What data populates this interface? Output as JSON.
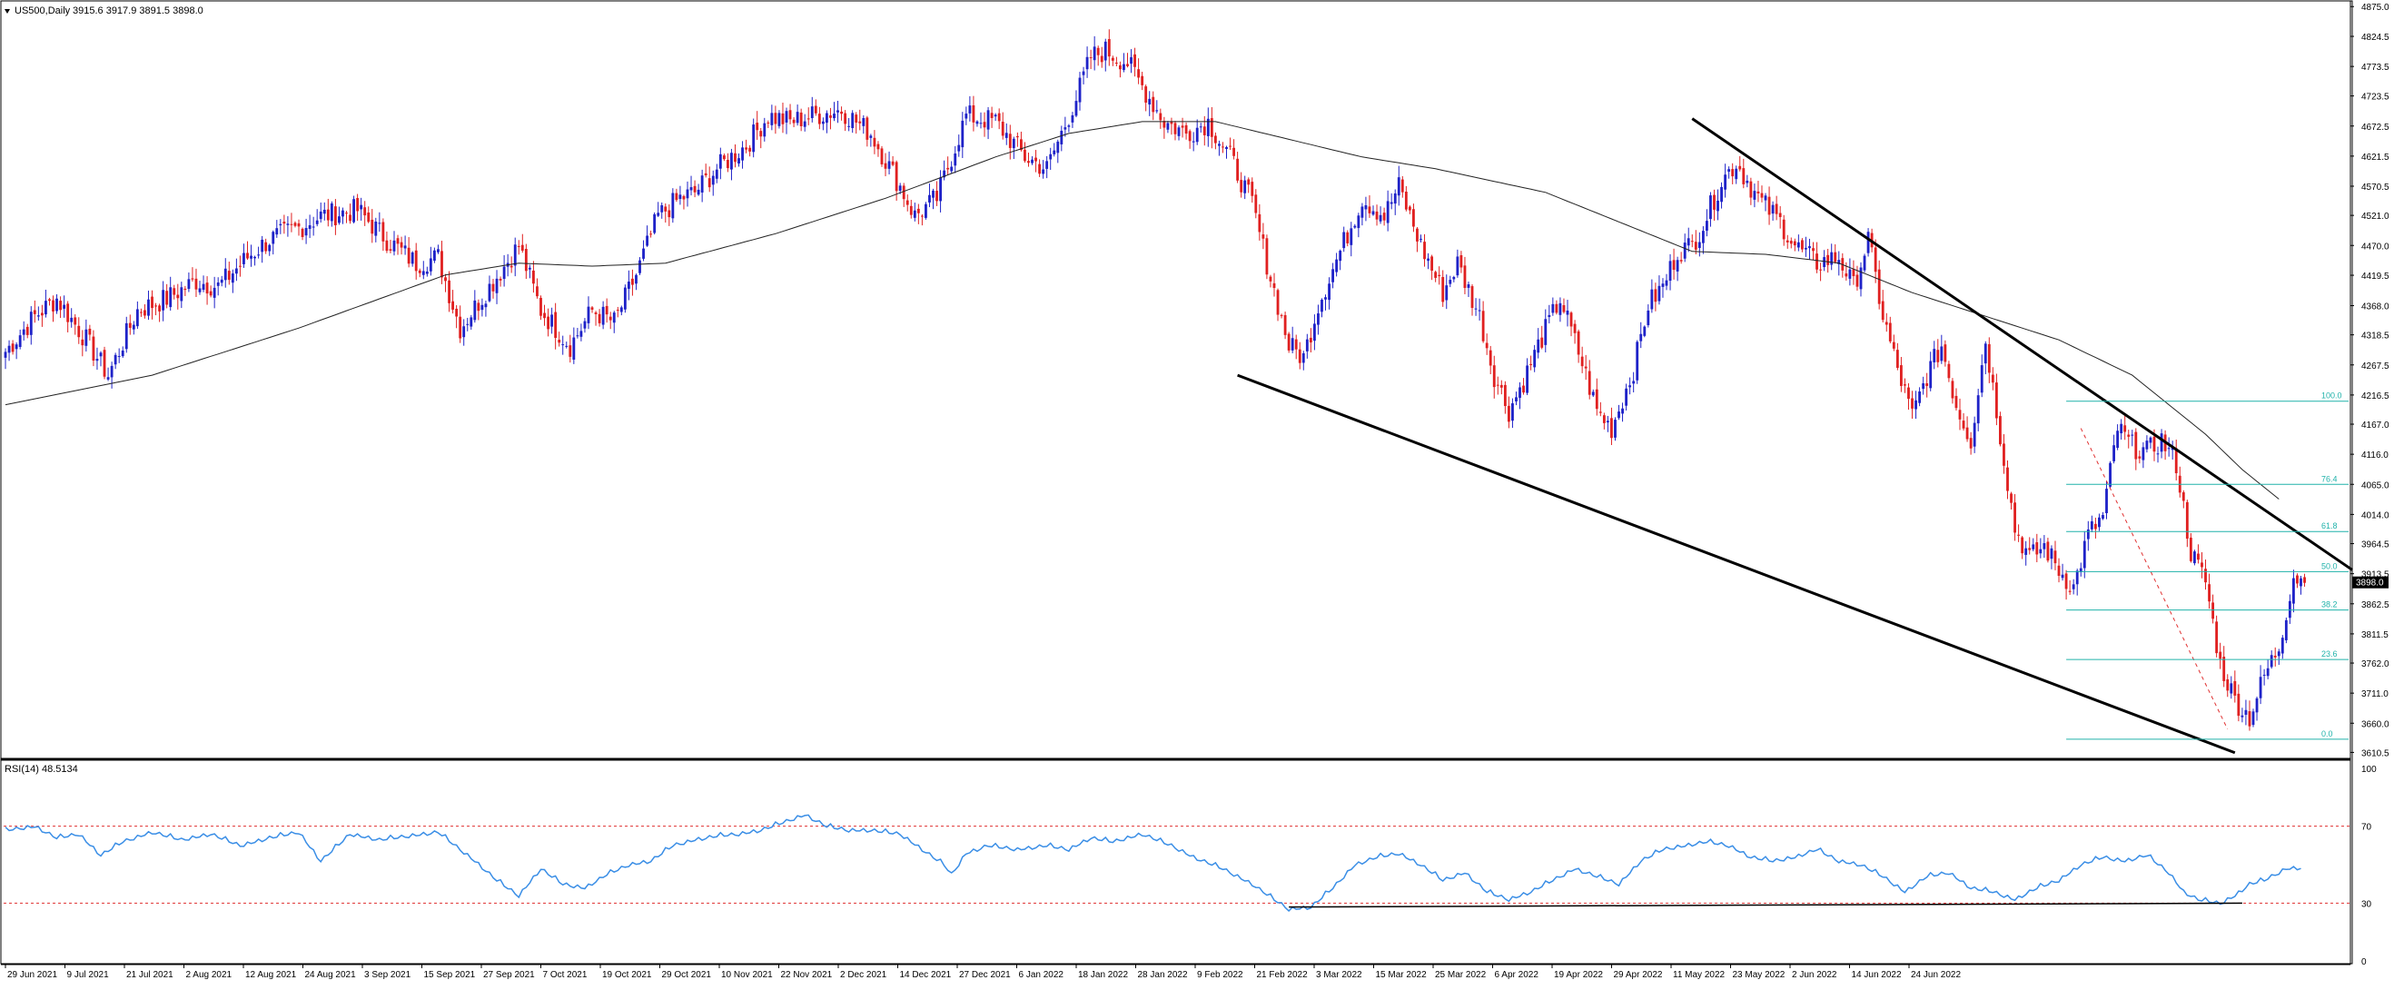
{
  "chart_data": {
    "type": "candlestick",
    "header": {
      "symbol": "US500,Daily",
      "ohlc": "3915.6 3917.9 3891.5 3898.0"
    },
    "price_axis": {
      "ticks": [
        "4875.0",
        "4824.5",
        "4773.5",
        "4723.5",
        "4672.5",
        "4621.5",
        "4570.5",
        "4521.0",
        "4470.0",
        "4419.5",
        "4368.0",
        "4318.5",
        "4267.5",
        "4216.5",
        "4167.0",
        "4116.0",
        "4065.0",
        "4014.0",
        "3964.5",
        "3913.5",
        "3862.5",
        "3811.5",
        "3762.0",
        "3711.0",
        "3660.0",
        "3610.5"
      ],
      "current_price": "3898.0",
      "range": [
        3605,
        4880
      ]
    },
    "date_axis": {
      "labels": [
        "29 Jun 2021",
        "9 Jul 2021",
        "21 Jul 2021",
        "2 Aug 2021",
        "12 Aug 2021",
        "24 Aug 2021",
        "3 Sep 2021",
        "15 Sep 2021",
        "27 Sep 2021",
        "7 Oct 2021",
        "19 Oct 2021",
        "29 Oct 2021",
        "10 Nov 2021",
        "22 Nov 2021",
        "2 Dec 2021",
        "14 Dec 2021",
        "27 Dec 2021",
        "6 Jan 2022",
        "18 Jan 2022",
        "28 Jan 2022",
        "9 Feb 2022",
        "21 Feb 2022",
        "3 Mar 2022",
        "15 Mar 2022",
        "25 Mar 2022",
        "6 Apr 2022",
        "19 Apr 2022",
        "29 Apr 2022",
        "11 May 2022",
        "23 May 2022",
        "2 Jun 2022",
        "14 Jun 2022",
        "24 Jun 2022"
      ]
    },
    "close_path": [
      [
        0,
        4290
      ],
      [
        8,
        4350
      ],
      [
        14,
        4380
      ],
      [
        22,
        4310
      ],
      [
        28,
        4250
      ],
      [
        36,
        4360
      ],
      [
        44,
        4380
      ],
      [
        52,
        4410
      ],
      [
        58,
        4400
      ],
      [
        66,
        4450
      ],
      [
        72,
        4480
      ],
      [
        80,
        4500
      ],
      [
        86,
        4520
      ],
      [
        96,
        4530
      ],
      [
        104,
        4480
      ],
      [
        112,
        4440
      ],
      [
        118,
        4450
      ],
      [
        124,
        4330
      ],
      [
        132,
        4400
      ],
      [
        140,
        4470
      ],
      [
        146,
        4360
      ],
      [
        154,
        4300
      ],
      [
        160,
        4360
      ],
      [
        166,
        4340
      ],
      [
        172,
        4420
      ],
      [
        178,
        4520
      ],
      [
        184,
        4550
      ],
      [
        188,
        4560
      ],
      [
        194,
        4600
      ],
      [
        202,
        4640
      ],
      [
        208,
        4690
      ],
      [
        214,
        4680
      ],
      [
        220,
        4690
      ],
      [
        228,
        4700
      ],
      [
        236,
        4660
      ],
      [
        244,
        4570
      ],
      [
        248,
        4520
      ],
      [
        254,
        4550
      ],
      [
        262,
        4690
      ],
      [
        270,
        4680
      ],
      [
        278,
        4620
      ],
      [
        284,
        4600
      ],
      [
        292,
        4720
      ],
      [
        296,
        4790
      ],
      [
        300,
        4800
      ],
      [
        306,
        4780
      ],
      [
        312,
        4720
      ],
      [
        316,
        4680
      ],
      [
        322,
        4660
      ],
      [
        328,
        4680
      ],
      [
        334,
        4620
      ],
      [
        340,
        4540
      ],
      [
        344,
        4440
      ],
      [
        350,
        4300
      ],
      [
        354,
        4280
      ],
      [
        358,
        4370
      ],
      [
        364,
        4460
      ],
      [
        370,
        4550
      ],
      [
        376,
        4520
      ],
      [
        380,
        4570
      ],
      [
        386,
        4470
      ],
      [
        392,
        4390
      ],
      [
        396,
        4440
      ],
      [
        402,
        4350
      ],
      [
        406,
        4250
      ],
      [
        410,
        4190
      ],
      [
        414,
        4240
      ],
      [
        418,
        4300
      ],
      [
        424,
        4380
      ],
      [
        430,
        4270
      ],
      [
        434,
        4190
      ],
      [
        438,
        4160
      ],
      [
        444,
        4260
      ],
      [
        448,
        4370
      ],
      [
        452,
        4400
      ],
      [
        456,
        4460
      ],
      [
        460,
        4470
      ],
      [
        464,
        4520
      ],
      [
        468,
        4580
      ],
      [
        472,
        4610
      ],
      [
        478,
        4550
      ],
      [
        484,
        4510
      ],
      [
        488,
        4470
      ],
      [
        494,
        4440
      ],
      [
        500,
        4450
      ],
      [
        504,
        4400
      ],
      [
        508,
        4480
      ],
      [
        512,
        4350
      ],
      [
        516,
        4260
      ],
      [
        520,
        4180
      ],
      [
        524,
        4250
      ],
      [
        528,
        4300
      ],
      [
        532,
        4200
      ],
      [
        536,
        4140
      ],
      [
        540,
        4310
      ],
      [
        544,
        4150
      ],
      [
        548,
        3990
      ],
      [
        552,
        3940
      ],
      [
        556,
        3960
      ],
      [
        560,
        3920
      ],
      [
        564,
        3890
      ],
      [
        568,
        3980
      ],
      [
        572,
        4010
      ],
      [
        576,
        4160
      ],
      [
        580,
        4130
      ],
      [
        584,
        4120
      ],
      [
        588,
        4140
      ],
      [
        592,
        4100
      ],
      [
        596,
        3950
      ],
      [
        600,
        3900
      ],
      [
        604,
        3760
      ],
      [
        608,
        3700
      ],
      [
        612,
        3670
      ],
      [
        616,
        3740
      ],
      [
        620,
        3790
      ],
      [
        624,
        3910
      ],
      [
        627,
        3898
      ]
    ],
    "moving_average": {
      "values": [
        [
          0,
          4200
        ],
        [
          40,
          4250
        ],
        [
          80,
          4330
        ],
        [
          120,
          4420
        ],
        [
          140,
          4440
        ],
        [
          160,
          4435
        ],
        [
          180,
          4440
        ],
        [
          210,
          4490
        ],
        [
          240,
          4550
        ],
        [
          270,
          4620
        ],
        [
          290,
          4660
        ],
        [
          310,
          4680
        ],
        [
          330,
          4680
        ],
        [
          350,
          4650
        ],
        [
          370,
          4620
        ],
        [
          390,
          4600
        ],
        [
          420,
          4560
        ],
        [
          440,
          4510
        ],
        [
          460,
          4460
        ],
        [
          480,
          4455
        ],
        [
          500,
          4440
        ],
        [
          520,
          4390
        ],
        [
          540,
          4350
        ],
        [
          560,
          4310
        ],
        [
          580,
          4250
        ],
        [
          590,
          4200
        ],
        [
          600,
          4150
        ],
        [
          610,
          4090
        ],
        [
          620,
          4040
        ]
      ]
    },
    "fibonacci": {
      "levels": [
        {
          "label": "100.0",
          "price": 4206
        },
        {
          "label": "76.4",
          "price": 4065
        },
        {
          "label": "61.8",
          "price": 3985
        },
        {
          "label": "50.0",
          "price": 3917
        },
        {
          "label": "38.2",
          "price": 3852
        },
        {
          "label": "23.6",
          "price": 3768
        },
        {
          "label": "0.0",
          "price": 3633
        }
      ],
      "color": "#20b2aa"
    },
    "trendlines": [
      {
        "from": [
          336,
          4250
        ],
        "to": [
          608,
          3610
        ],
        "color": "#000000"
      },
      {
        "from": [
          460,
          4685
        ],
        "to": [
          640,
          3920
        ],
        "color": "#000000"
      },
      {
        "from": [
          566,
          4160
        ],
        "to": [
          606,
          3650
        ],
        "color": "#e03030"
      }
    ],
    "rsi": {
      "label": "RSI(14) 48.5134",
      "ticks": [
        "100",
        "70",
        "30",
        "0"
      ],
      "levels": [
        70,
        30
      ],
      "values": [
        [
          0,
          68
        ],
        [
          8,
          70
        ],
        [
          14,
          64
        ],
        [
          20,
          66
        ],
        [
          26,
          55
        ],
        [
          32,
          62
        ],
        [
          40,
          67
        ],
        [
          48,
          63
        ],
        [
          56,
          66
        ],
        [
          64,
          60
        ],
        [
          72,
          64
        ],
        [
          80,
          67
        ],
        [
          86,
          52
        ],
        [
          94,
          66
        ],
        [
          102,
          63
        ],
        [
          110,
          65
        ],
        [
          118,
          67
        ],
        [
          124,
          58
        ],
        [
          128,
          52
        ],
        [
          134,
          42
        ],
        [
          140,
          34
        ],
        [
          146,
          48
        ],
        [
          152,
          40
        ],
        [
          158,
          38
        ],
        [
          164,
          45
        ],
        [
          170,
          50
        ],
        [
          176,
          52
        ],
        [
          182,
          60
        ],
        [
          188,
          63
        ],
        [
          194,
          65
        ],
        [
          200,
          66
        ],
        [
          206,
          68
        ],
        [
          212,
          72
        ],
        [
          218,
          76
        ],
        [
          224,
          70
        ],
        [
          230,
          68
        ],
        [
          236,
          68
        ],
        [
          244,
          66
        ],
        [
          256,
          50
        ],
        [
          258,
          45
        ],
        [
          262,
          56
        ],
        [
          268,
          60
        ],
        [
          276,
          58
        ],
        [
          284,
          60
        ],
        [
          290,
          58
        ],
        [
          296,
          64
        ],
        [
          302,
          62
        ],
        [
          310,
          66
        ],
        [
          318,
          60
        ],
        [
          324,
          54
        ],
        [
          332,
          48
        ],
        [
          340,
          40
        ],
        [
          346,
          32
        ],
        [
          350,
          27
        ],
        [
          356,
          28
        ],
        [
          362,
          38
        ],
        [
          368,
          50
        ],
        [
          374,
          54
        ],
        [
          380,
          56
        ],
        [
          386,
          50
        ],
        [
          392,
          42
        ],
        [
          398,
          46
        ],
        [
          404,
          36
        ],
        [
          410,
          32
        ],
        [
          416,
          36
        ],
        [
          422,
          42
        ],
        [
          428,
          48
        ],
        [
          434,
          44
        ],
        [
          440,
          40
        ],
        [
          446,
          52
        ],
        [
          452,
          58
        ],
        [
          458,
          60
        ],
        [
          464,
          62
        ],
        [
          470,
          60
        ],
        [
          476,
          54
        ],
        [
          482,
          52
        ],
        [
          488,
          54
        ],
        [
          494,
          58
        ],
        [
          500,
          52
        ],
        [
          506,
          50
        ],
        [
          512,
          44
        ],
        [
          518,
          36
        ],
        [
          524,
          44
        ],
        [
          530,
          46
        ],
        [
          536,
          38
        ],
        [
          542,
          36
        ],
        [
          548,
          32
        ],
        [
          554,
          38
        ],
        [
          560,
          42
        ],
        [
          566,
          50
        ],
        [
          572,
          54
        ],
        [
          578,
          52
        ],
        [
          584,
          55
        ],
        [
          590,
          46
        ],
        [
          594,
          36
        ],
        [
          598,
          32
        ],
        [
          604,
          30
        ],
        [
          608,
          34
        ],
        [
          612,
          40
        ],
        [
          616,
          42
        ],
        [
          622,
          48
        ],
        [
          626,
          48.5
        ]
      ],
      "support_from": [
        350,
        28
      ],
      "support_to": [
        610,
        30
      ]
    },
    "colors": {
      "bull": "#1e22c8",
      "bear": "#e02020",
      "ma": "#222222",
      "rsi": "#3a8ee6",
      "level": "#e03030"
    }
  }
}
